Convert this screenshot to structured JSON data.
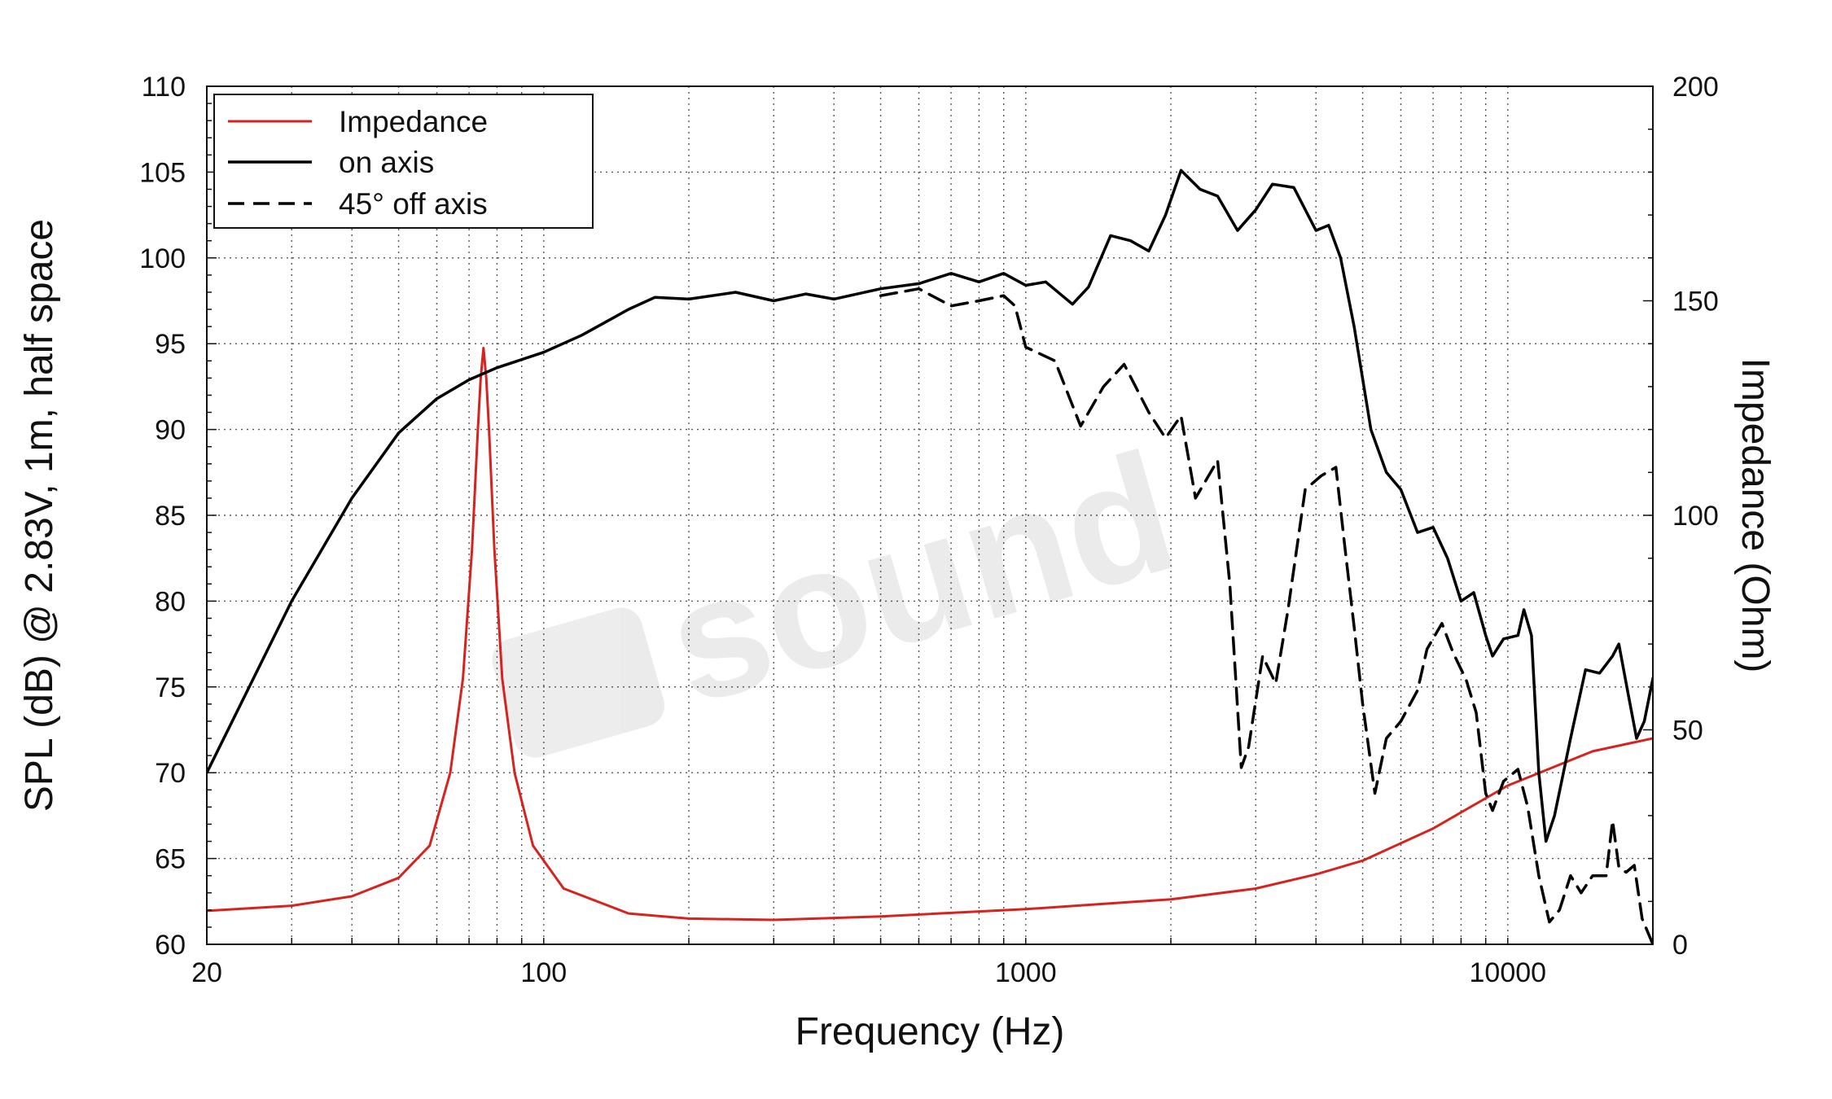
{
  "chart_data": {
    "type": "line",
    "xlabel": "Frequency (Hz)",
    "ylabel": "SPL (dB) @ 2.83V, 1m, half space",
    "y2label": "Impedance (Ohm)",
    "x_scale": "log",
    "xlim": [
      20,
      20000
    ],
    "ylim": [
      60,
      110
    ],
    "y2lim": [
      0,
      200
    ],
    "x_ticks": [
      20,
      100,
      1000,
      10000
    ],
    "x_tick_labels": [
      "20",
      "100",
      "1000",
      "10000"
    ],
    "y_ticks": [
      60,
      65,
      70,
      75,
      80,
      85,
      90,
      95,
      100,
      105,
      110
    ],
    "y_tick_labels": [
      "60",
      "65",
      "70",
      "75",
      "80",
      "85",
      "90",
      "95",
      "100",
      "105",
      "110"
    ],
    "y2_ticks": [
      0,
      50,
      100,
      150,
      200
    ],
    "y2_tick_labels": [
      "0",
      "50",
      "100",
      "150",
      "200"
    ],
    "grid": true,
    "legend_position": "top-left",
    "watermark": "sound",
    "series": [
      {
        "name": "Impedance",
        "axis": "right",
        "color": "#d6231d",
        "dash": "solid",
        "points": [
          [
            20,
            7.8
          ],
          [
            30,
            9
          ],
          [
            40,
            11.2
          ],
          [
            50,
            15.5
          ],
          [
            58,
            23
          ],
          [
            64,
            40
          ],
          [
            68,
            62
          ],
          [
            71,
            92
          ],
          [
            73,
            120
          ],
          [
            74,
            132
          ],
          [
            75,
            139
          ],
          [
            76,
            132
          ],
          [
            77,
            120
          ],
          [
            79,
            92
          ],
          [
            82,
            62
          ],
          [
            87,
            40
          ],
          [
            95,
            23
          ],
          [
            110,
            13
          ],
          [
            150,
            7.2
          ],
          [
            200,
            6
          ],
          [
            300,
            5.7
          ],
          [
            500,
            6.5
          ],
          [
            1000,
            8.2
          ],
          [
            2000,
            10.5
          ],
          [
            3000,
            13
          ],
          [
            4000,
            16.3
          ],
          [
            5000,
            19.5
          ],
          [
            7000,
            27
          ],
          [
            10000,
            37
          ],
          [
            15000,
            45
          ],
          [
            20000,
            48
          ]
        ]
      },
      {
        "name": "on axis",
        "axis": "left",
        "color": "#000000",
        "dash": "solid",
        "points": [
          [
            20,
            70
          ],
          [
            30,
            80
          ],
          [
            40,
            86
          ],
          [
            50,
            89.8
          ],
          [
            60,
            91.8
          ],
          [
            70,
            92.9
          ],
          [
            80,
            93.6
          ],
          [
            100,
            94.5
          ],
          [
            120,
            95.5
          ],
          [
            150,
            97
          ],
          [
            170,
            97.7
          ],
          [
            200,
            97.6
          ],
          [
            250,
            98
          ],
          [
            300,
            97.5
          ],
          [
            350,
            97.9
          ],
          [
            400,
            97.6
          ],
          [
            500,
            98.2
          ],
          [
            600,
            98.5
          ],
          [
            700,
            99.1
          ],
          [
            800,
            98.6
          ],
          [
            900,
            99.1
          ],
          [
            1000,
            98.4
          ],
          [
            1100,
            98.6
          ],
          [
            1250,
            97.3
          ],
          [
            1350,
            98.3
          ],
          [
            1500,
            101.3
          ],
          [
            1650,
            101
          ],
          [
            1800,
            100.4
          ],
          [
            1950,
            102.5
          ],
          [
            2100,
            105.1
          ],
          [
            2300,
            104
          ],
          [
            2500,
            103.6
          ],
          [
            2750,
            101.6
          ],
          [
            3000,
            102.8
          ],
          [
            3250,
            104.3
          ],
          [
            3600,
            104.1
          ],
          [
            4000,
            101.6
          ],
          [
            4250,
            101.9
          ],
          [
            4500,
            100
          ],
          [
            4800,
            96
          ],
          [
            5200,
            90
          ],
          [
            5600,
            87.5
          ],
          [
            6000,
            86.5
          ],
          [
            6500,
            84
          ],
          [
            7000,
            84.3
          ],
          [
            7500,
            82.5
          ],
          [
            8000,
            80
          ],
          [
            8500,
            80.5
          ],
          [
            9000,
            78
          ],
          [
            9300,
            76.8
          ],
          [
            9800,
            77.8
          ],
          [
            10500,
            78
          ],
          [
            10800,
            79.5
          ],
          [
            11200,
            78
          ],
          [
            11600,
            70
          ],
          [
            12000,
            66
          ],
          [
            12500,
            67.5
          ],
          [
            13500,
            72
          ],
          [
            14500,
            76
          ],
          [
            15500,
            75.8
          ],
          [
            16500,
            76.8
          ],
          [
            17000,
            77.5
          ],
          [
            17800,
            74.5
          ],
          [
            18500,
            72
          ],
          [
            19200,
            73
          ],
          [
            20000,
            75.5
          ]
        ]
      },
      {
        "name": "45° off axis",
        "axis": "left",
        "color": "#000000",
        "dash": "dashed",
        "points": [
          [
            500,
            97.8
          ],
          [
            600,
            98.2
          ],
          [
            700,
            97.2
          ],
          [
            800,
            97.5
          ],
          [
            900,
            97.8
          ],
          [
            950,
            97.2
          ],
          [
            1000,
            94.8
          ],
          [
            1150,
            94
          ],
          [
            1300,
            90.2
          ],
          [
            1450,
            92.5
          ],
          [
            1600,
            93.8
          ],
          [
            1800,
            91
          ],
          [
            1950,
            89.5
          ],
          [
            2100,
            90.8
          ],
          [
            2250,
            86
          ],
          [
            2500,
            88.2
          ],
          [
            2650,
            81
          ],
          [
            2800,
            70.3
          ],
          [
            2900,
            71.5
          ],
          [
            3100,
            76.8
          ],
          [
            3300,
            75.2
          ],
          [
            3500,
            79.5
          ],
          [
            3800,
            86.5
          ],
          [
            4100,
            87.3
          ],
          [
            4400,
            87.8
          ],
          [
            4600,
            83
          ],
          [
            4800,
            78.5
          ],
          [
            5000,
            74
          ],
          [
            5300,
            68.8
          ],
          [
            5600,
            72
          ],
          [
            6000,
            73
          ],
          [
            6500,
            74.8
          ],
          [
            6800,
            77.2
          ],
          [
            7300,
            78.7
          ],
          [
            7700,
            77
          ],
          [
            8200,
            75.4
          ],
          [
            8600,
            73.5
          ],
          [
            9000,
            68.8
          ],
          [
            9300,
            67.8
          ],
          [
            9800,
            69.5
          ],
          [
            10500,
            70.2
          ],
          [
            11000,
            68
          ],
          [
            11600,
            64
          ],
          [
            12200,
            61.3
          ],
          [
            12800,
            62
          ],
          [
            13500,
            64
          ],
          [
            14200,
            63
          ],
          [
            15000,
            64
          ],
          [
            16000,
            64
          ],
          [
            16500,
            67.2
          ],
          [
            17000,
            64.5
          ],
          [
            17600,
            64.2
          ],
          [
            18300,
            64.6
          ],
          [
            19000,
            61.5
          ],
          [
            20000,
            60
          ]
        ]
      }
    ]
  }
}
